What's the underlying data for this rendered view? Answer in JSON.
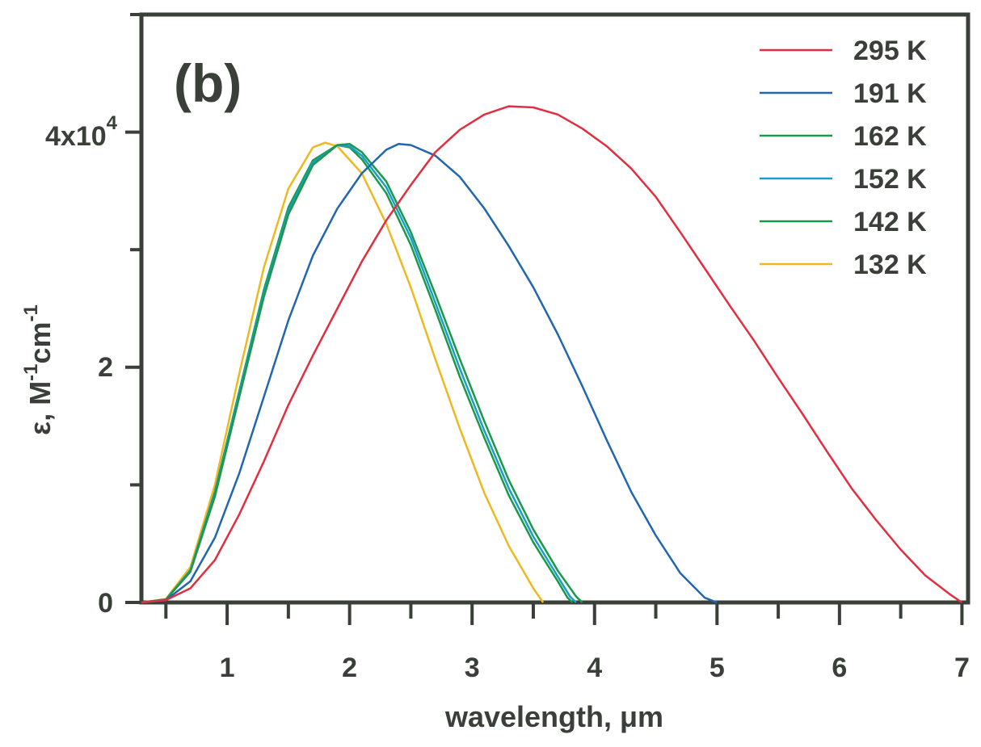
{
  "chart_data": {
    "type": "line",
    "panel_label": "(b)",
    "xlabel": "wavelength, μm",
    "ylabel": {
      "base": "ε, M",
      "sup1": "-1",
      "mid": "cm",
      "sup2": "-1"
    },
    "xlim": [
      0.3,
      7.05
    ],
    "ylim": [
      0,
      50000
    ],
    "x_ticks": [
      1,
      2,
      3,
      4,
      5,
      6,
      7
    ],
    "x_tick_labels": [
      "1",
      "2",
      "3",
      "4",
      "5",
      "6",
      "7"
    ],
    "x_minor_ticks": [
      0.5,
      1.5,
      2.5,
      3.5,
      4.5,
      5.5,
      6.5
    ],
    "y_ticks": [
      0,
      20000,
      40000
    ],
    "y_tick_labels": {
      "zero": "0",
      "two": "2",
      "four_base": "4x10",
      "four_exp": "4"
    },
    "y_minor_ticks": [
      10000,
      30000,
      50000
    ],
    "legend_position": "top-right",
    "grid": false,
    "series": [
      {
        "name": "295 K",
        "color": "#e03040",
        "points": [
          [
            0.3,
            0
          ],
          [
            0.5,
            200
          ],
          [
            0.7,
            1200
          ],
          [
            0.9,
            3600
          ],
          [
            1.1,
            7500
          ],
          [
            1.3,
            12000
          ],
          [
            1.5,
            16800
          ],
          [
            1.7,
            21000
          ],
          [
            1.9,
            25000
          ],
          [
            2.1,
            29000
          ],
          [
            2.3,
            32500
          ],
          [
            2.5,
            35500
          ],
          [
            2.7,
            38300
          ],
          [
            2.9,
            40200
          ],
          [
            3.1,
            41500
          ],
          [
            3.3,
            42200
          ],
          [
            3.5,
            42100
          ],
          [
            3.7,
            41500
          ],
          [
            3.9,
            40300
          ],
          [
            4.1,
            38800
          ],
          [
            4.3,
            36900
          ],
          [
            4.5,
            34500
          ],
          [
            4.7,
            31500
          ],
          [
            4.9,
            28400
          ],
          [
            5.1,
            25300
          ],
          [
            5.3,
            22300
          ],
          [
            5.5,
            19100
          ],
          [
            5.7,
            16000
          ],
          [
            5.9,
            12800
          ],
          [
            6.1,
            9700
          ],
          [
            6.3,
            7000
          ],
          [
            6.5,
            4500
          ],
          [
            6.7,
            2300
          ],
          [
            6.9,
            700
          ],
          [
            7.0,
            0
          ]
        ]
      },
      {
        "name": "191 K",
        "color": "#2066b0",
        "points": [
          [
            0.3,
            0
          ],
          [
            0.5,
            200
          ],
          [
            0.7,
            1800
          ],
          [
            0.9,
            5500
          ],
          [
            1.1,
            11000
          ],
          [
            1.3,
            17500
          ],
          [
            1.5,
            24000
          ],
          [
            1.7,
            29500
          ],
          [
            1.9,
            33500
          ],
          [
            2.1,
            36500
          ],
          [
            2.3,
            38500
          ],
          [
            2.4,
            39000
          ],
          [
            2.5,
            38900
          ],
          [
            2.7,
            38000
          ],
          [
            2.9,
            36200
          ],
          [
            3.1,
            33500
          ],
          [
            3.3,
            30300
          ],
          [
            3.5,
            26800
          ],
          [
            3.7,
            22800
          ],
          [
            3.9,
            18400
          ],
          [
            4.1,
            13800
          ],
          [
            4.3,
            9400
          ],
          [
            4.5,
            5700
          ],
          [
            4.7,
            2500
          ],
          [
            4.9,
            400
          ],
          [
            5.0,
            0
          ]
        ]
      },
      {
        "name": "162 K",
        "color": "#1a9a48",
        "points": [
          [
            0.3,
            0
          ],
          [
            0.5,
            250
          ],
          [
            0.7,
            2600
          ],
          [
            0.9,
            9000
          ],
          [
            1.1,
            17500
          ],
          [
            1.3,
            26000
          ],
          [
            1.5,
            33000
          ],
          [
            1.7,
            37200
          ],
          [
            1.9,
            38900
          ],
          [
            2.0,
            39000
          ],
          [
            2.1,
            38300
          ],
          [
            2.3,
            35800
          ],
          [
            2.5,
            31500
          ],
          [
            2.7,
            26200
          ],
          [
            2.9,
            20700
          ],
          [
            3.1,
            15400
          ],
          [
            3.3,
            10400
          ],
          [
            3.5,
            6200
          ],
          [
            3.7,
            2700
          ],
          [
            3.85,
            500
          ],
          [
            3.9,
            0
          ]
        ]
      },
      {
        "name": "152 K",
        "color": "#1a9cd0",
        "points": [
          [
            0.3,
            0
          ],
          [
            0.5,
            250
          ],
          [
            0.7,
            2700
          ],
          [
            0.9,
            9200
          ],
          [
            1.1,
            17800
          ],
          [
            1.3,
            26300
          ],
          [
            1.5,
            33300
          ],
          [
            1.7,
            37400
          ],
          [
            1.9,
            38900
          ],
          [
            2.0,
            38800
          ],
          [
            2.1,
            38000
          ],
          [
            2.3,
            35300
          ],
          [
            2.5,
            31000
          ],
          [
            2.7,
            25500
          ],
          [
            2.9,
            19900
          ],
          [
            3.1,
            14600
          ],
          [
            3.3,
            9700
          ],
          [
            3.5,
            5600
          ],
          [
            3.7,
            2200
          ],
          [
            3.8,
            500
          ],
          [
            3.85,
            0
          ]
        ]
      },
      {
        "name": "142 K",
        "color": "#1a9a48",
        "points": [
          [
            0.3,
            0
          ],
          [
            0.5,
            250
          ],
          [
            0.7,
            2750
          ],
          [
            0.9,
            9400
          ],
          [
            1.1,
            18000
          ],
          [
            1.3,
            26600
          ],
          [
            1.5,
            33600
          ],
          [
            1.7,
            37600
          ],
          [
            1.9,
            38900
          ],
          [
            2.0,
            38700
          ],
          [
            2.1,
            37700
          ],
          [
            2.3,
            34800
          ],
          [
            2.5,
            30400
          ],
          [
            2.7,
            24900
          ],
          [
            2.9,
            19200
          ],
          [
            3.1,
            14000
          ],
          [
            3.3,
            9100
          ],
          [
            3.5,
            5100
          ],
          [
            3.7,
            1800
          ],
          [
            3.78,
            400
          ],
          [
            3.82,
            0
          ]
        ]
      },
      {
        "name": "132 K",
        "color": "#f0b820",
        "points": [
          [
            0.3,
            0
          ],
          [
            0.5,
            300
          ],
          [
            0.7,
            3000
          ],
          [
            0.9,
            10000
          ],
          [
            1.1,
            19500
          ],
          [
            1.3,
            28500
          ],
          [
            1.5,
            35200
          ],
          [
            1.7,
            38700
          ],
          [
            1.8,
            39100
          ],
          [
            1.9,
            38800
          ],
          [
            2.1,
            36500
          ],
          [
            2.3,
            32200
          ],
          [
            2.5,
            26800
          ],
          [
            2.7,
            20700
          ],
          [
            2.9,
            14800
          ],
          [
            3.1,
            9300
          ],
          [
            3.3,
            4800
          ],
          [
            3.5,
            1200
          ],
          [
            3.58,
            0
          ]
        ]
      }
    ]
  }
}
